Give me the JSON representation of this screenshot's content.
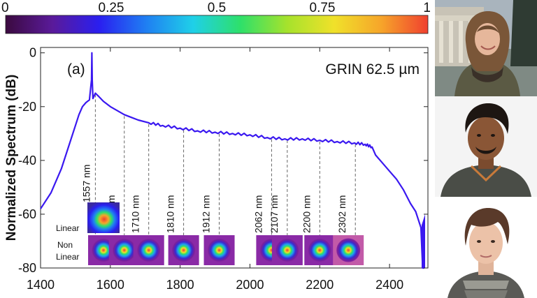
{
  "colorbar": {
    "ticks": [
      "0",
      "0.25",
      "0.5",
      "0.75",
      "1"
    ],
    "stops": [
      "#3b0a3f",
      "#5a1a9a",
      "#2a1ff0",
      "#1f7ff2",
      "#1fd0e8",
      "#2ee06a",
      "#a6e22c",
      "#f0e12a",
      "#f6a52a",
      "#f0402f"
    ]
  },
  "chart_data": {
    "type": "line",
    "title": "GRIN 62.5 µm",
    "panel_label": "(a)",
    "xlabel": "",
    "ylabel": "Normalized Spectrum (dB)",
    "xlim": [
      1400,
      2510
    ],
    "ylim": [
      -80,
      2
    ],
    "xticks": [
      "1400",
      "1600",
      "1800",
      "2000",
      "2200",
      "2400"
    ],
    "yticks": [
      "0",
      "-20",
      "-40",
      "-60",
      "-80"
    ],
    "series": [
      {
        "color": "#3a18f0",
        "x": [
          1400,
          1430,
          1460,
          1480,
          1500,
          1510,
          1520,
          1530,
          1540,
          1546,
          1547,
          1548,
          1550,
          1557,
          1565,
          1580,
          1600,
          1620,
          1640,
          1660,
          1680,
          1710,
          1750,
          1800,
          1850,
          1900,
          1950,
          2000,
          2050,
          2100,
          2150,
          2200,
          2250,
          2300,
          2330,
          2350,
          2360,
          2380,
          2400,
          2420,
          2440,
          2460,
          2475,
          2480,
          2485,
          2490,
          2495,
          2500
        ],
        "y": [
          -58,
          -52,
          -43,
          -35,
          -27,
          -23,
          -20,
          -18.5,
          -17.5,
          -10,
          0,
          -10,
          -17,
          -15,
          -16,
          -18,
          -20,
          -21.5,
          -23,
          -24,
          -25,
          -26,
          -27,
          -28,
          -29,
          -29.5,
          -30,
          -30.5,
          -31.5,
          -32,
          -32,
          -32.5,
          -33,
          -33.5,
          -34,
          -35,
          -38,
          -41,
          -44,
          -47,
          -51,
          -56,
          -59,
          -61,
          -63,
          -65,
          -80,
          -80
        ]
      }
    ],
    "annotations": {
      "wavelength_labels": [
        "1557 nm",
        "1640 nm",
        "1710 nm",
        "1810 nm",
        "1912 nm",
        "2062 nm",
        "2107 nm",
        "2200 nm",
        "2302 nm"
      ],
      "wavelength_values": [
        1557,
        1640,
        1710,
        1810,
        1912,
        2062,
        2107,
        2200,
        2302
      ],
      "row_labels": [
        "Linear",
        "Non\nLinear"
      ]
    }
  },
  "photos": [
    {
      "subject": "portrait of woman in front of building"
    },
    {
      "subject": "portrait of man"
    },
    {
      "subject": "portrait of woman with short hair"
    }
  ]
}
